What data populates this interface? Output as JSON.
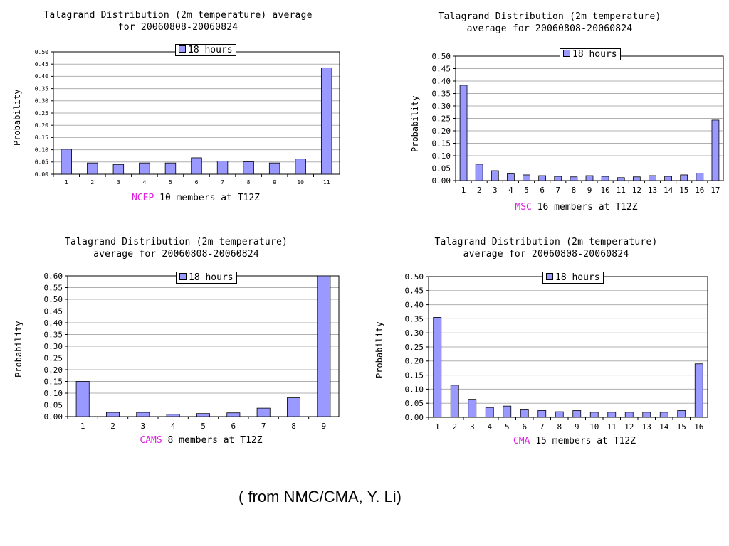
{
  "chart_data": [
    {
      "type": "bar",
      "title": "Talagrand Distribution (2m temperature) average\nfor 20060808-20060824",
      "ylabel": "Probability",
      "x_model": "NCEP",
      "x_rest": " 10 members at T12Z",
      "legend": "18 hours",
      "legend_position": "top-center",
      "grid": true,
      "ylim": [
        0,
        0.5
      ],
      "yticks": [
        "0.00",
        "0.05",
        "0.10",
        "0.15",
        "0.20",
        "0.25",
        "0.30",
        "0.35",
        "0.40",
        "0.45",
        "0.50"
      ],
      "categories": [
        "1",
        "2",
        "3",
        "4",
        "5",
        "6",
        "7",
        "8",
        "9",
        "10",
        "11"
      ],
      "series": [
        {
          "values": [
            0.102,
            0.046,
            0.04,
            0.046,
            0.046,
            0.067,
            0.054,
            0.051,
            0.046,
            0.062,
            0.435
          ]
        }
      ],
      "bar_color": "#9999ff"
    },
    {
      "type": "bar",
      "title": "Talagrand Distribution (2m temperature)\naverage for 20060808-20060824",
      "ylabel": "Probability",
      "x_model": "MSC",
      "x_rest": " 16 members at T12Z",
      "legend": "18 hours",
      "legend_position": "top-center",
      "grid": true,
      "ylim": [
        0,
        0.5
      ],
      "yticks": [
        "0.00",
        "0.05",
        "0.10",
        "0.15",
        "0.20",
        "0.25",
        "0.30",
        "0.35",
        "0.40",
        "0.45",
        "0.50"
      ],
      "categories": [
        "1",
        "2",
        "3",
        "4",
        "5",
        "6",
        "7",
        "8",
        "9",
        "10",
        "11",
        "12",
        "13",
        "14",
        "15",
        "16",
        "17"
      ],
      "series": [
        {
          "values": [
            0.383,
            0.066,
            0.04,
            0.027,
            0.023,
            0.02,
            0.017,
            0.015,
            0.02,
            0.017,
            0.012,
            0.015,
            0.02,
            0.017,
            0.023,
            0.03,
            0.243
          ]
        }
      ],
      "bar_color": "#9999ff"
    },
    {
      "type": "bar",
      "title": "Talagrand Distribution (2m temperature)\naverage for 20060808-20060824",
      "ylabel": "Probability",
      "x_model": "CAMS",
      "x_rest": " 8 members at T12Z",
      "legend": "18 hours",
      "legend_position": "top-center",
      "grid": true,
      "ylim": [
        0,
        0.6
      ],
      "yticks": [
        "0.00",
        "0.05",
        "0.10",
        "0.15",
        "0.20",
        "0.25",
        "0.30",
        "0.35",
        "0.40",
        "0.45",
        "0.50",
        "0.55",
        "0.60"
      ],
      "categories": [
        "1",
        "2",
        "3",
        "4",
        "5",
        "6",
        "7",
        "8",
        "9"
      ],
      "series": [
        {
          "values": [
            0.15,
            0.018,
            0.018,
            0.01,
            0.013,
            0.016,
            0.036,
            0.08,
            0.61
          ]
        }
      ],
      "bar_color": "#9999ff"
    },
    {
      "type": "bar",
      "title": "Talagrand Distribution (2m temperature)\naverage for 20060808-20060824",
      "ylabel": "Probability",
      "x_model": "CMA",
      "x_rest": " 15 members at T12Z",
      "legend": "18 hours",
      "legend_position": "top-center",
      "grid": true,
      "ylim": [
        0,
        0.5
      ],
      "yticks": [
        "0.00",
        "0.05",
        "0.10",
        "0.15",
        "0.20",
        "0.25",
        "0.30",
        "0.35",
        "0.40",
        "0.45",
        "0.50"
      ],
      "categories": [
        "1",
        "2",
        "3",
        "4",
        "5",
        "6",
        "7",
        "8",
        "9",
        "10",
        "11",
        "12",
        "13",
        "14",
        "15",
        "16"
      ],
      "series": [
        {
          "values": [
            0.355,
            0.114,
            0.064,
            0.035,
            0.04,
            0.029,
            0.024,
            0.02,
            0.024,
            0.018,
            0.018,
            0.018,
            0.018,
            0.018,
            0.024,
            0.19
          ]
        }
      ],
      "bar_color": "#9999ff"
    }
  ],
  "footer": {
    "source": "( from NMC/CMA, Y. Li)"
  }
}
